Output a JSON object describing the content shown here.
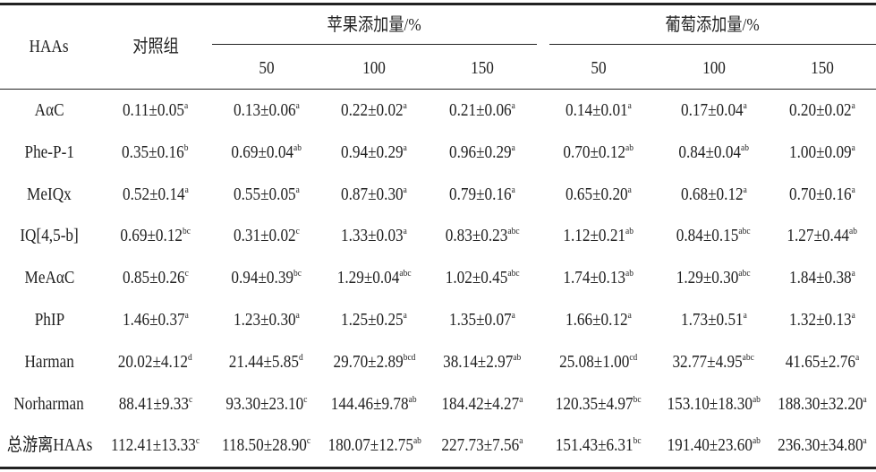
{
  "header": {
    "row_label": "HAAs",
    "control": "对照组",
    "groups": [
      {
        "title": "苹果添加量/%",
        "levels": [
          "50",
          "100",
          "150"
        ]
      },
      {
        "title": "葡萄添加量/%",
        "levels": [
          "50",
          "100",
          "150"
        ]
      }
    ]
  },
  "rows": [
    {
      "label": "AαC",
      "cells": [
        {
          "text": "0.11±0.05",
          "sup": "a"
        },
        {
          "text": "0.13±0.06",
          "sup": "a"
        },
        {
          "text": "0.22±0.02",
          "sup": "a"
        },
        {
          "text": "0.21±0.06",
          "sup": "a"
        },
        {
          "text": "0.14±0.01",
          "sup": "a"
        },
        {
          "text": "0.17±0.04",
          "sup": "a"
        },
        {
          "text": "0.20±0.02",
          "sup": "a"
        }
      ]
    },
    {
      "label": "Phe-P-1",
      "cells": [
        {
          "text": "0.35±0.16",
          "sup": "b"
        },
        {
          "text": "0.69±0.04",
          "sup": "ab"
        },
        {
          "text": "0.94±0.29",
          "sup": "a"
        },
        {
          "text": "0.96±0.29",
          "sup": "a"
        },
        {
          "text": "0.70±0.12",
          "sup": "ab"
        },
        {
          "text": "0.84±0.04",
          "sup": "ab"
        },
        {
          "text": "1.00±0.09",
          "sup": "a"
        }
      ]
    },
    {
      "label": "MeIQx",
      "cells": [
        {
          "text": "0.52±0.14",
          "sup": "a"
        },
        {
          "text": "0.55±0.05",
          "sup": "a"
        },
        {
          "text": "0.87±0.30",
          "sup": "a"
        },
        {
          "text": "0.79±0.16",
          "sup": "a"
        },
        {
          "text": "0.65±0.20",
          "sup": "a"
        },
        {
          "text": "0.68±0.12",
          "sup": "a"
        },
        {
          "text": "0.70±0.16",
          "sup": "a"
        }
      ]
    },
    {
      "label": "IQ[4,5-b]",
      "cells": [
        {
          "text": "0.69±0.12",
          "sup": "bc"
        },
        {
          "text": "0.31±0.02",
          "sup": "c"
        },
        {
          "text": "1.33±0.03",
          "sup": "a"
        },
        {
          "text": "0.83±0.23",
          "sup": "abc"
        },
        {
          "text": "1.12±0.21",
          "sup": "ab"
        },
        {
          "text": "0.84±0.15",
          "sup": "abc"
        },
        {
          "text": "1.27±0.44",
          "sup": "ab"
        }
      ]
    },
    {
      "label": "MeAαC",
      "cells": [
        {
          "text": "0.85±0.26",
          "sup": "c"
        },
        {
          "text": "0.94±0.39",
          "sup": "bc"
        },
        {
          "text": "1.29±0.04",
          "sup": "abc"
        },
        {
          "text": "1.02±0.45",
          "sup": "abc"
        },
        {
          "text": "1.74±0.13",
          "sup": "ab"
        },
        {
          "text": "1.29±0.30",
          "sup": "abc"
        },
        {
          "text": "1.84±0.38",
          "sup": "a"
        }
      ]
    },
    {
      "label": "PhIP",
      "cells": [
        {
          "text": "1.46±0.37",
          "sup": "a"
        },
        {
          "text": "1.23±0.30",
          "sup": "a"
        },
        {
          "text": "1.25±0.25",
          "sup": "a"
        },
        {
          "text": "1.35±0.07",
          "sup": "a"
        },
        {
          "text": "1.66±0.12",
          "sup": "a"
        },
        {
          "text": "1.73±0.51",
          "sup": "a"
        },
        {
          "text": "1.32±0.13",
          "sup": "a"
        }
      ]
    },
    {
      "label": "Harman",
      "cells": [
        {
          "text": "20.02±4.12",
          "sup": "d"
        },
        {
          "text": "21.44±5.85",
          "sup": "d"
        },
        {
          "text": "29.70±2.89",
          "sup": "bcd"
        },
        {
          "text": "38.14±2.97",
          "sup": "ab"
        },
        {
          "text": "25.08±1.00",
          "sup": "cd"
        },
        {
          "text": "32.77±4.95",
          "sup": "abc"
        },
        {
          "text": "41.65±2.76",
          "sup": "a"
        }
      ]
    },
    {
      "label": "Norharman",
      "cells": [
        {
          "text": "88.41±9.33",
          "sup": "c"
        },
        {
          "text": "93.30±23.10",
          "sup": "c"
        },
        {
          "text": "144.46±9.78",
          "sup": "ab"
        },
        {
          "text": "184.42±4.27",
          "sup": "a"
        },
        {
          "text": "120.35±4.97",
          "sup": "bc"
        },
        {
          "text": "153.10±18.30",
          "sup": "ab"
        },
        {
          "text": "188.30±32.20",
          "sup": "a"
        }
      ]
    },
    {
      "label": "总游离HAAs",
      "cells": [
        {
          "text": "112.41±13.33",
          "sup": "c"
        },
        {
          "text": "118.50±28.90",
          "sup": "c"
        },
        {
          "text": "180.07±12.75",
          "sup": "ab"
        },
        {
          "text": "227.73±7.56",
          "sup": "a"
        },
        {
          "text": "151.43±6.31",
          "sup": "bc"
        },
        {
          "text": "191.40±23.60",
          "sup": "ab"
        },
        {
          "text": "236.30±34.80",
          "sup": "a"
        }
      ]
    }
  ]
}
